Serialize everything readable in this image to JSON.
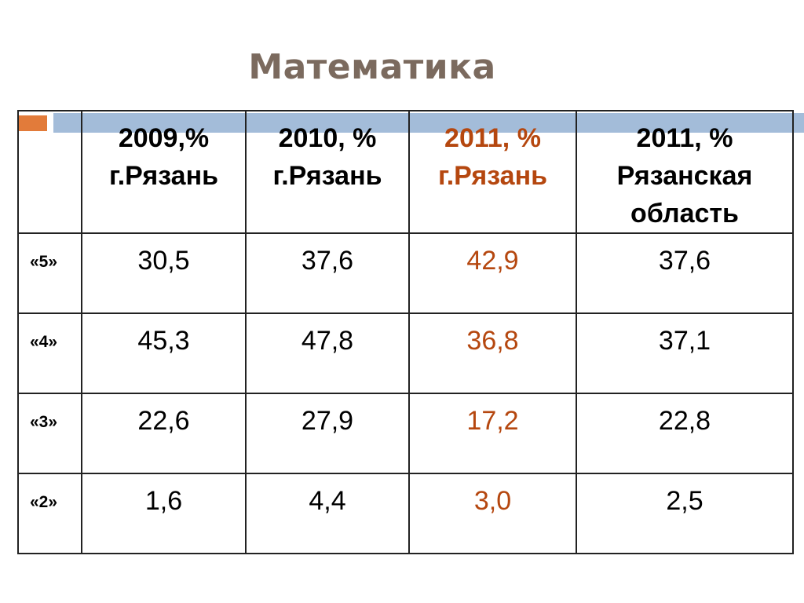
{
  "title": "Математика",
  "table": {
    "header": [
      "2009,%\nг.Рязань",
      "2010, %\nг.Рязань",
      "2011, %\nг.Рязань",
      "2011, %\nРязанская\nобласть"
    ],
    "rows": [
      {
        "label": "«5»",
        "cells": [
          "30,5",
          "37,6",
          "42,9",
          "37,6"
        ]
      },
      {
        "label": "«4»",
        "cells": [
          "45,3",
          "47,8",
          "36,8",
          "37,1"
        ]
      },
      {
        "label": "«3»",
        "cells": [
          "22,6",
          "27,9",
          "17,2",
          "22,8"
        ]
      },
      {
        "label": "«2»",
        "cells": [
          "1,6",
          "4,4",
          "3,0",
          "2,5"
        ]
      }
    ]
  }
}
